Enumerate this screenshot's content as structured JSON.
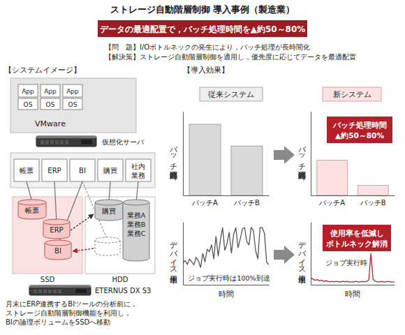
{
  "header": {
    "title": "ストレージ自動階層制御 導入事例（製造業）",
    "banner": "データの最適配置で，バッチ処理時間を▲約50～80%",
    "problem": "【問　題】I/Oボトルネックの発生により，バッチ処理が長時間化",
    "solution": "【解決策】ストレージ自動階層制御を適用し，優先度に応じてデータを最適配置"
  },
  "system_image": {
    "heading": "【システムイメージ】",
    "vm_apps": [
      {
        "app": "App",
        "os": "OS"
      },
      {
        "app": "App",
        "os": "OS"
      },
      {
        "app": "App",
        "os": "OS"
      }
    ],
    "vmware": "VMware",
    "server_label": "仮想化サーバ",
    "applications": [
      [
        "帳票"
      ],
      [
        "ERP"
      ],
      [
        "BI"
      ],
      [
        "購買"
      ],
      [
        "社内",
        "業務"
      ]
    ],
    "ssd_volumes": [
      [
        "帳票"
      ],
      [
        "ERP"
      ],
      [
        "BI"
      ]
    ],
    "hdd_volumes": [
      [
        "購買"
      ],
      [
        "業務A",
        "業務B",
        "業務C"
      ]
    ],
    "tiers": [
      "SSD",
      "HDD"
    ],
    "storage_label": "ETERNUS DX S3",
    "caption": [
      "月末にERP連携するBIツールの分析前に，",
      "ストレージ自動階層制御機能を利用し，",
      "BIの論理ボリュームをSSDへ移動"
    ]
  },
  "effects": {
    "heading": "【導入効果】",
    "columns": [
      "従来システム",
      "新システム"
    ]
  },
  "chart_data": [
    {
      "type": "bar",
      "y_label": "バッチ処理時間",
      "categories": [
        "バッチA",
        "バッチB"
      ],
      "values": [
        85,
        59
      ],
      "color": "#d9d9d9",
      "ylim": [
        0,
        100
      ],
      "yticks": [],
      "tick_labels": "x"
    },
    {
      "type": "bar",
      "y_label": "バッチ処理時間",
      "categories": [
        "バッチA",
        "バッチB"
      ],
      "values": [
        42,
        12
      ],
      "color": "#fbe1e1",
      "ylim": [
        0,
        100
      ],
      "yticks": [],
      "tick_labels": "x",
      "annotation": [
        "バッチ処理時間",
        "▲約50～80%"
      ]
    },
    {
      "type": "line",
      "y_label": "デバイス使用率",
      "x_label": "時間",
      "x": [
        0,
        1,
        2,
        3,
        4,
        5,
        6,
        7,
        8,
        9,
        10,
        11,
        12,
        13,
        14,
        15,
        16,
        17,
        18,
        19,
        20,
        21,
        22,
        23,
        24,
        25,
        26,
        27,
        28,
        29,
        30,
        31,
        32,
        33,
        34,
        35,
        36,
        37,
        38,
        39
      ],
      "values": [
        38,
        42,
        36,
        45,
        40,
        35,
        48,
        42,
        30,
        55,
        40,
        62,
        58,
        70,
        45,
        85,
        50,
        78,
        100,
        60,
        72,
        92,
        55,
        88,
        100,
        65,
        80,
        98,
        100,
        75,
        70,
        100,
        95,
        60,
        45,
        100,
        100,
        90,
        40,
        35
      ],
      "color": "#555555",
      "xlim": [
        0,
        39
      ],
      "ylim": [
        0,
        110
      ],
      "xticks": [],
      "yticks": [],
      "tick_labels": false,
      "annotation": [
        "ジョブ実行時は100%到達"
      ]
    },
    {
      "type": "line",
      "y_label": "デバイス使用率",
      "x_label": "時間",
      "x": [
        0,
        1,
        2,
        3,
        4,
        5,
        6,
        7,
        8,
        9,
        10,
        11,
        12,
        13,
        14,
        15,
        16,
        17,
        18,
        19,
        20,
        21,
        22,
        23,
        24,
        25,
        26,
        27,
        28,
        29,
        30,
        31,
        32,
        33,
        34,
        35,
        36,
        37,
        38,
        39
      ],
      "values": [
        12,
        10,
        8,
        9,
        7,
        8,
        6,
        7,
        6,
        5,
        6,
        5,
        6,
        5,
        5,
        6,
        5,
        6,
        5,
        5,
        5,
        6,
        5,
        5,
        6,
        5,
        6,
        8,
        55,
        10,
        6,
        5,
        5,
        6,
        5,
        5,
        6,
        5,
        5,
        5
      ],
      "color": "#b3202a",
      "xlim": [
        0,
        39
      ],
      "ylim": [
        0,
        110
      ],
      "xticks": [],
      "yticks": [],
      "tick_labels": false,
      "annotation": [
        "使用率を低減し",
        "ボトルネック解消"
      ],
      "spike_annotation": [
        "ジョブ実行時"
      ]
    }
  ]
}
